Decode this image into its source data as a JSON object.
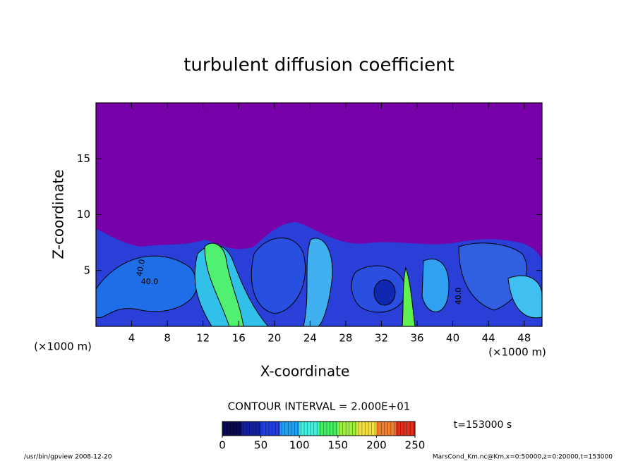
{
  "chart_data": {
    "type": "contour",
    "title": "turbulent diffusion coefficient",
    "x_label": "X-coordinate",
    "y_label": "Z-coordinate",
    "x_unit_label": "(×1000 m)",
    "y_unit_label": "(×1000 m)",
    "xlim": [
      0,
      50
    ],
    "xticks": [
      4,
      8,
      12,
      16,
      20,
      24,
      28,
      32,
      36,
      40,
      44,
      48
    ],
    "ylim": [
      0,
      20
    ],
    "yticks": [
      5,
      10,
      15
    ],
    "contour_labels": [
      "40.0",
      "40.0",
      "40.0"
    ],
    "contour_interval": "CONTOUR INTERVAL = 2.000E+01",
    "time_label": "t=153000 s",
    "colorbar": {
      "lim": [
        0,
        250
      ],
      "ticks": [
        0,
        50,
        100,
        150,
        200,
        250
      ],
      "colors": [
        "#0a0a50",
        "#1020a0",
        "#2040e0",
        "#20a0f0",
        "#40f0e0",
        "#40f060",
        "#a0f040",
        "#f0e040",
        "#f08030",
        "#e03020"
      ]
    },
    "footer_left": "/usr/bin/gpview   2008-12-20",
    "footer_right": "MarsCond_Km.nc@Km,x=0:50000,z=0:20000,t=153000"
  }
}
